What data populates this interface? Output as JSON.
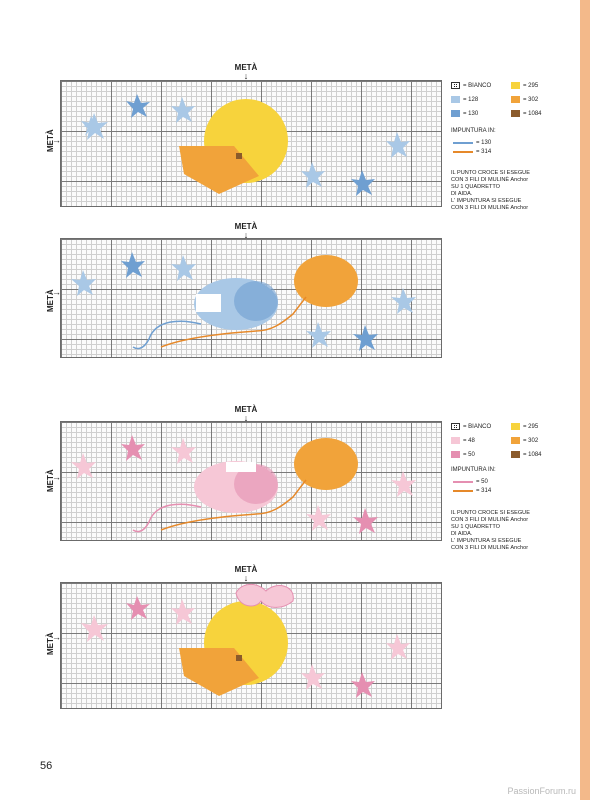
{
  "page": {
    "number": "56",
    "watermark": "PassionForum.ru",
    "accent_color": "#f3b98a"
  },
  "labels": {
    "meta": "METÀ"
  },
  "colors": {
    "bianco": "#ffffff",
    "blue_128": "#a9c8e6",
    "blue_130": "#6f9fd1",
    "pink_48": "#f6c7d6",
    "pink_50": "#e58fb1",
    "yellow_295": "#f7d33c",
    "orange_302": "#f1a33a",
    "brown_1084": "#8a5a2b"
  },
  "legend_blue": {
    "items": [
      {
        "label": "= BIANCO",
        "color": "#ffffff",
        "white": true
      },
      {
        "label": "= 295",
        "color": "#f7d33c"
      },
      {
        "label": "= 128",
        "color": "#a9c8e6"
      },
      {
        "label": "= 302",
        "color": "#f1a33a"
      },
      {
        "label": "= 130",
        "color": "#6f9fd1"
      },
      {
        "label": "= 1084",
        "color": "#8a5a2b"
      }
    ],
    "impuntura_title": "IMPUNTURA IN:",
    "impuntura": [
      {
        "label": "= 130",
        "color": "#6f9fd1"
      },
      {
        "label": "= 314",
        "color": "#e6892a"
      }
    ],
    "note": "IL PUNTO CROCE SI ESEGUE\nCON 3 FILI DI MULINÈ Anchor\nSU 1 QUADRETTO\nDI AIDA.\nL' IMPUNTURA SI ESEGUE\nCON 3 FILI DI MULINÈ Anchor"
  },
  "legend_pink": {
    "items": [
      {
        "label": "= BIANCO",
        "color": "#ffffff",
        "white": true
      },
      {
        "label": "= 295",
        "color": "#f7d33c"
      },
      {
        "label": "= 48",
        "color": "#f6c7d6"
      },
      {
        "label": "= 302",
        "color": "#f1a33a"
      },
      {
        "label": "= 50",
        "color": "#e58fb1"
      },
      {
        "label": "= 1084",
        "color": "#8a5a2b"
      }
    ],
    "impuntura_title": "IMPUNTURA IN:",
    "impuntura": [
      {
        "label": "= 50",
        "color": "#e58fb1"
      },
      {
        "label": "= 314",
        "color": "#e6892a"
      }
    ],
    "note": "IL PUNTO CROCE SI ESEGUE\nCON 3 FILI DI MULINÈ Anchor\nSU 1 QUADRETTO\nDI AIDA.\nL' IMPUNTURA SI ESEGUE\nCON 3 FILI DI MULINÈ Anchor"
  }
}
